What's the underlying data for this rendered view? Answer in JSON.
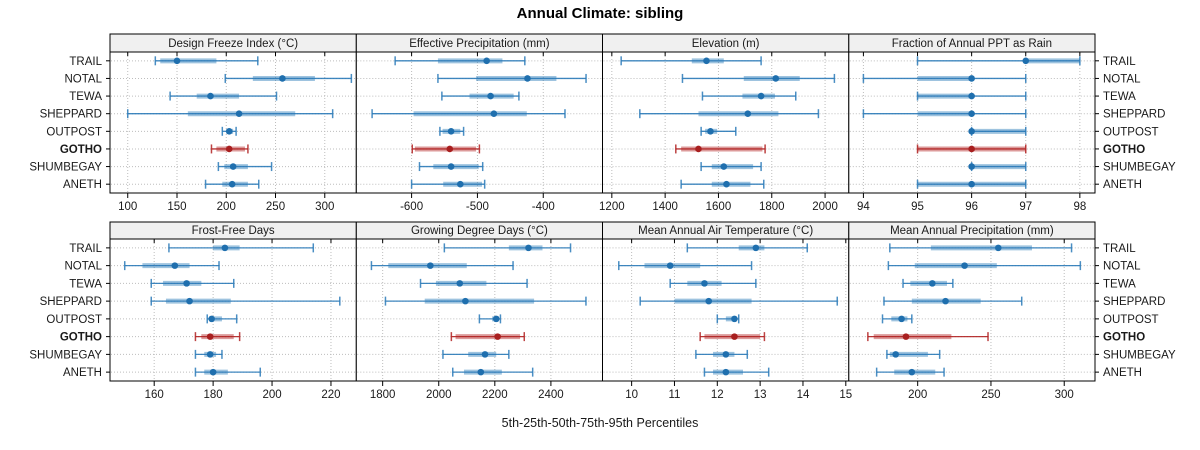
{
  "title": "Annual Climate: sibling",
  "footer_label": "5th-25th-50th-75th-95th Percentiles",
  "chart_data": {
    "type": "dotplot",
    "title": "Annual Climate: sibling",
    "xlabel": "5th-25th-50th-75th-95th Percentiles",
    "percentiles": [
      5,
      25,
      50,
      75,
      95
    ],
    "grid": "dotted",
    "legend_position": "none",
    "sites": [
      "TRAIL",
      "NOTAL",
      "TEWA",
      "SHEPPARD",
      "OUTPOST",
      "GOTHO",
      "SHUMBEGAY",
      "ANETH"
    ],
    "highlight_site": "GOTHO",
    "colors": {
      "series": "#2b7bb9",
      "series_dot": "#1f6fae",
      "highlight": "#b22222",
      "highlight_dot": "#a81f1f",
      "grid": "#bdbdbd",
      "header_bg": "#f0f0f0",
      "border": "#000000",
      "text": "#1a1a1a"
    },
    "panels": [
      {
        "title": "Design Freeze Index (°C)",
        "grid_row": 0,
        "grid_col": 0,
        "xlim": [
          82,
          332
        ],
        "ticks": [
          100,
          150,
          200,
          250,
          300
        ],
        "values": {
          "TRAIL": [
            128,
            133,
            150,
            190,
            232
          ],
          "NOTAL": [
            199,
            227,
            257,
            290,
            327
          ],
          "TEWA": [
            143,
            170,
            184,
            213,
            251
          ],
          "SHEPPARD": [
            100,
            161,
            213,
            270,
            308
          ],
          "OUTPOST": [
            196,
            200,
            203,
            207,
            210
          ],
          "GOTHO": [
            185,
            190,
            203,
            219,
            222
          ],
          "SHUMBEGAY": [
            192,
            198,
            207,
            222,
            246
          ],
          "ANETH": [
            179,
            196,
            206,
            222,
            233
          ]
        }
      },
      {
        "title": "Effective Precipitation (mm)",
        "grid_row": 0,
        "grid_col": 1,
        "xlim": [
          -684,
          -310
        ],
        "ticks": [
          -600,
          -500,
          -400
        ],
        "values": {
          "TRAIL": [
            -625,
            -560,
            -486,
            -462,
            -428
          ],
          "NOTAL": [
            -560,
            -502,
            -424,
            -380,
            -335
          ],
          "TEWA": [
            -554,
            -512,
            -480,
            -445,
            -437
          ],
          "SHEPPARD": [
            -660,
            -597,
            -475,
            -425,
            -367
          ],
          "OUTPOST": [
            -557,
            -553,
            -540,
            -526,
            -521
          ],
          "GOTHO": [
            -599,
            -595,
            -542,
            -502,
            -497
          ],
          "SHUMBEGAY": [
            -588,
            -567,
            -540,
            -498,
            -492
          ],
          "ANETH": [
            -600,
            -552,
            -526,
            -493,
            -489
          ]
        }
      },
      {
        "title": "Elevation (m)",
        "grid_row": 0,
        "grid_col": 2,
        "xlim": [
          1165,
          2089
        ],
        "ticks": [
          1200,
          1400,
          1600,
          1800,
          2000
        ],
        "values": {
          "TRAIL": [
            1235,
            1500,
            1555,
            1620,
            1760
          ],
          "NOTAL": [
            1465,
            1695,
            1815,
            1905,
            2035
          ],
          "TEWA": [
            1540,
            1690,
            1760,
            1812,
            1890
          ],
          "SHEPPARD": [
            1305,
            1525,
            1710,
            1825,
            1975
          ],
          "OUTPOST": [
            1535,
            1550,
            1570,
            1595,
            1665
          ],
          "GOTHO": [
            1440,
            1460,
            1525,
            1765,
            1775
          ],
          "SHUMBEGAY": [
            1535,
            1575,
            1620,
            1730,
            1760
          ],
          "ANETH": [
            1460,
            1575,
            1630,
            1720,
            1770
          ]
        }
      },
      {
        "title": "Fraction of Annual PPT as Rain",
        "grid_row": 0,
        "grid_col": 3,
        "xlim": [
          93.73,
          98.28
        ],
        "ticks": [
          94,
          95,
          96,
          97,
          98
        ],
        "values": {
          "TRAIL": [
            95,
            97,
            97,
            98,
            98
          ],
          "NOTAL": [
            94,
            95,
            96,
            96,
            97
          ],
          "TEWA": [
            95,
            95,
            96,
            96,
            97
          ],
          "SHEPPARD": [
            94,
            95,
            96,
            96,
            97
          ],
          "OUTPOST": [
            96,
            96,
            96,
            97,
            97
          ],
          "GOTHO": [
            95,
            95,
            96,
            97,
            97
          ],
          "SHUMBEGAY": [
            96,
            96,
            96,
            97,
            97
          ],
          "ANETH": [
            95,
            95,
            96,
            97,
            97
          ]
        }
      },
      {
        "title": "Frost-Free Days",
        "grid_row": 1,
        "grid_col": 0,
        "xlim": [
          145,
          228.6
        ],
        "ticks": [
          160,
          180,
          200,
          220
        ],
        "values": {
          "TRAIL": [
            165,
            180,
            184,
            189,
            214
          ],
          "NOTAL": [
            150,
            156,
            167,
            172,
            182
          ],
          "TEWA": [
            159,
            163,
            171,
            176,
            187
          ],
          "SHEPPARD": [
            159,
            164,
            172,
            186,
            223
          ],
          "OUTPOST": [
            178,
            179,
            179.5,
            183,
            188
          ],
          "GOTHO": [
            174,
            176,
            179,
            187,
            189
          ],
          "SHUMBEGAY": [
            174,
            177,
            179,
            181,
            183
          ],
          "ANETH": [
            174,
            177,
            180,
            185,
            196
          ]
        }
      },
      {
        "title": "Growing Degree Days (°C)",
        "grid_row": 1,
        "grid_col": 1,
        "xlim": [
          1706,
          2584
        ],
        "ticks": [
          1800,
          2000,
          2200,
          2400
        ],
        "values": {
          "TRAIL": [
            2020,
            2250,
            2320,
            2370,
            2470
          ],
          "NOTAL": [
            1760,
            1820,
            1970,
            2100,
            2265
          ],
          "TEWA": [
            1935,
            1990,
            2075,
            2170,
            2315
          ],
          "SHEPPARD": [
            1810,
            1950,
            2095,
            2340,
            2525
          ],
          "OUTPOST": [
            2145,
            2190,
            2205,
            2215,
            2220
          ],
          "GOTHO": [
            2045,
            2060,
            2210,
            2290,
            2305
          ],
          "SHUMBEGAY": [
            2015,
            2105,
            2165,
            2205,
            2250
          ],
          "ANETH": [
            2050,
            2090,
            2150,
            2225,
            2335
          ]
        }
      },
      {
        "title": "Mean Annual Air Temperature (°C)",
        "grid_row": 1,
        "grid_col": 2,
        "xlim": [
          9.32,
          15.07
        ],
        "ticks": [
          10,
          11,
          12,
          13,
          14,
          15
        ],
        "values": {
          "TRAIL": [
            11.3,
            12.5,
            12.9,
            13.1,
            14.1
          ],
          "NOTAL": [
            9.7,
            10.3,
            10.9,
            11.6,
            12.8
          ],
          "TEWA": [
            10.9,
            11.3,
            11.7,
            12.1,
            12.9
          ],
          "SHEPPARD": [
            10.2,
            11.0,
            11.8,
            12.8,
            14.8
          ],
          "OUTPOST": [
            12.0,
            12.2,
            12.4,
            12.45,
            12.5
          ],
          "GOTHO": [
            11.6,
            11.7,
            12.4,
            13.0,
            13.1
          ],
          "SHUMBEGAY": [
            11.5,
            11.9,
            12.2,
            12.4,
            12.7
          ],
          "ANETH": [
            11.7,
            11.9,
            12.2,
            12.6,
            13.2
          ]
        }
      },
      {
        "title": "Mean Annual Precipitation (mm)",
        "grid_row": 1,
        "grid_col": 3,
        "xlim": [
          153,
          321
        ],
        "ticks": [
          200,
          250,
          300
        ],
        "values": {
          "TRAIL": [
            181,
            209,
            255,
            278,
            305
          ],
          "NOTAL": [
            180,
            198,
            232,
            254,
            311
          ],
          "TEWA": [
            190,
            195,
            210,
            220,
            224
          ],
          "SHEPPARD": [
            177,
            196,
            219,
            243,
            271
          ],
          "OUTPOST": [
            176,
            182,
            189,
            193,
            196
          ],
          "GOTHO": [
            166,
            170,
            192,
            223,
            248
          ],
          "SHUMBEGAY": [
            179,
            181,
            185,
            207,
            215
          ],
          "ANETH": [
            172,
            184,
            196,
            212,
            218
          ]
        }
      }
    ]
  }
}
